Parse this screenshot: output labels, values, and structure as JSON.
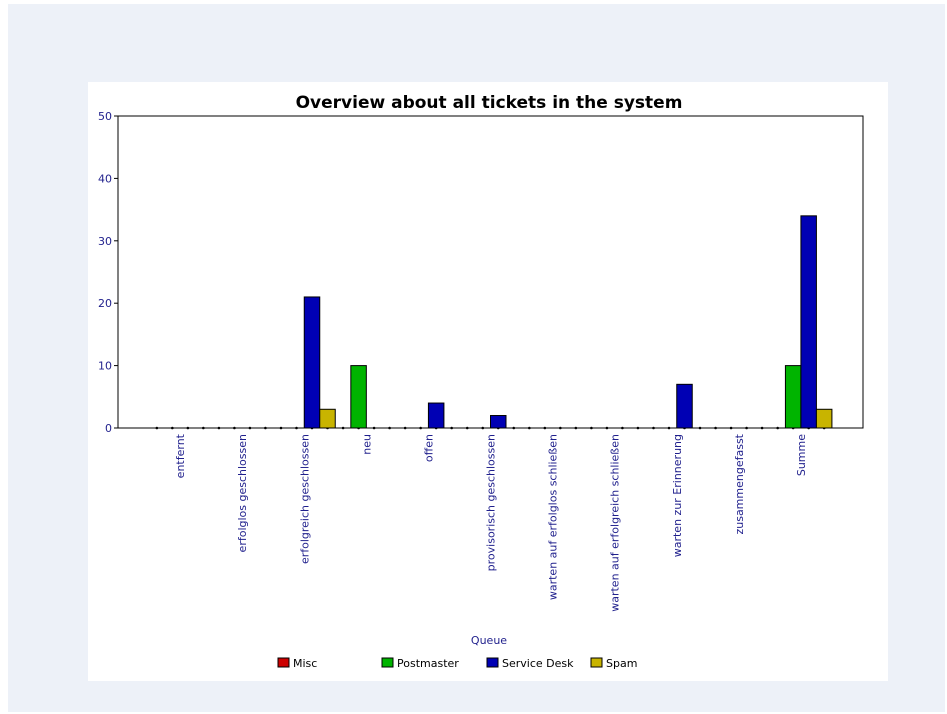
{
  "chart_data": {
    "type": "bar",
    "title": "Overview about all tickets in the system",
    "xlabel": "Queue",
    "ylabel": "",
    "ylim": [
      0,
      50
    ],
    "yticks": [
      0,
      10,
      20,
      30,
      40,
      50
    ],
    "grid": false,
    "legend_position": "bottom",
    "categories": [
      "entfernt",
      "erfolglos geschlossen",
      "erfolgreich geschlossen",
      "neu",
      "offen",
      "provisorisch geschlossen",
      "warten auf erfolglos schließen",
      "warten auf erfolgreich schließen",
      "warten zur Erinnerung",
      "zusammengefasst",
      "Summe"
    ],
    "series": [
      {
        "name": "Misc",
        "color": "#cc0000",
        "values": [
          0,
          0,
          0,
          0,
          0,
          0,
          0,
          0,
          0,
          0,
          0
        ]
      },
      {
        "name": "Postmaster",
        "color": "#00b400",
        "values": [
          0,
          0,
          0,
          10,
          0,
          0,
          0,
          0,
          0,
          0,
          10
        ]
      },
      {
        "name": "Service Desk",
        "color": "#0000b4",
        "values": [
          0,
          0,
          21,
          0,
          4,
          2,
          0,
          0,
          7,
          0,
          34
        ]
      },
      {
        "name": "Spam",
        "color": "#c8b400",
        "values": [
          0,
          0,
          3,
          0,
          0,
          0,
          0,
          0,
          0,
          0,
          3
        ]
      }
    ]
  }
}
